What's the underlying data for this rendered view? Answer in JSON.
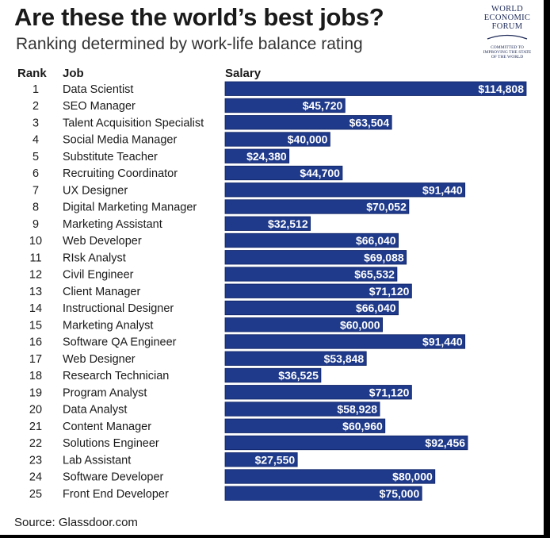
{
  "title": "Are these the world’s best jobs?",
  "subtitle": "Ranking determined by work-life balance rating",
  "logo": {
    "lines": [
      "WORLD",
      "ECONOMIC",
      "FORUM"
    ],
    "tagline": [
      "COMMITTED TO",
      "IMPROVING THE STATE",
      "OF THE WORLD"
    ]
  },
  "headers": {
    "rank": "Rank",
    "job": "Job",
    "salary": "Salary"
  },
  "source": "Source: Glassdoor.com",
  "colors": {
    "bar": "#1f3a8a",
    "bar_edge": "#0f2366",
    "label": "#ffffff"
  },
  "chart_data": {
    "type": "bar",
    "orientation": "horizontal",
    "title": "Are these the world’s best jobs?",
    "subtitle": "Ranking determined by work-life balance rating",
    "value_label": "Salary",
    "rank_labels": [
      "1",
      "2",
      "3",
      "4",
      "5",
      "6",
      "7",
      "8",
      "9",
      "10",
      "11",
      "12",
      "13",
      "14",
      "15",
      "16",
      "17",
      "18",
      "19",
      "20",
      "21",
      "22",
      "23",
      "24",
      "25"
    ],
    "categories": [
      "Data Scientist",
      "SEO Manager",
      "Talent Acquisition Specialist",
      "Social Media Manager",
      "Substitute Teacher",
      "Recruiting Coordinator",
      "UX Designer",
      "Digital Marketing Manager",
      "Marketing Assistant",
      "Web Developer",
      "RIsk Analyst",
      "Civil Engineer",
      "Client Manager",
      "Instructional Designer",
      "Marketing Analyst",
      "Software QA Engineer",
      "Web Designer",
      "Research Technician",
      "Program Analyst",
      "Data Analyst",
      "Content Manager",
      "Solutions Engineer",
      "Lab Assistant",
      "Software Developer",
      "Front End Developer"
    ],
    "values": [
      114808,
      45720,
      63504,
      40000,
      24380,
      44700,
      91440,
      70052,
      32512,
      66040,
      69088,
      65532,
      71120,
      66040,
      60000,
      91440,
      53848,
      36525,
      71120,
      58928,
      60960,
      92456,
      27550,
      80000,
      75000
    ],
    "value_labels": [
      "$114,808",
      "$45,720",
      "$63,504",
      "$40,000",
      "$24,380",
      "$44,700",
      "$91,440",
      "$70,052",
      "$32,512",
      "$66,040",
      "$69,088",
      "$65,532",
      "$71,120",
      "$66,040",
      "$60,000",
      "$91,440",
      "$53,848",
      "$36,525",
      "$71,120",
      "$58,928",
      "$60,960",
      "$92,456",
      "$27,550",
      "$80,000",
      "$75,000"
    ],
    "xlim": [
      0,
      114808
    ],
    "grid": false
  }
}
